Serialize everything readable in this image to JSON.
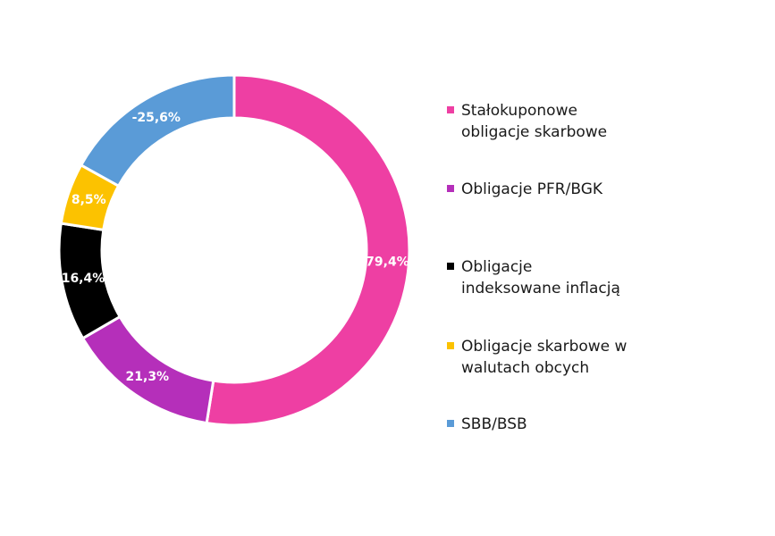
{
  "chart_data": {
    "type": "pie",
    "donut": true,
    "unit": "%",
    "slices": [
      {
        "label": "Stałokuponowe\nobligacje skarbowe",
        "value": 79.4,
        "value_text": "79,4%",
        "color": "#ee3fa3"
      },
      {
        "label": "Obligacje PFR/BGK",
        "value": 21.3,
        "value_text": "21,3%",
        "color": "#b52fba"
      },
      {
        "label": "Obligacje\nindeksowane inflacją",
        "value": 16.4,
        "value_text": "16,4%",
        "color": "#000000"
      },
      {
        "label": "Obligacje skarbowe w\nwalutach obcych",
        "value": 8.5,
        "value_text": "8,5%",
        "color": "#fcc200"
      },
      {
        "label": "SBB/BSB",
        "value": -25.6,
        "value_text": "-25,6%",
        "color": "#5a9bd7"
      }
    ],
    "legend_position": "right",
    "start_angle_deg": 0,
    "direction": "clockwise"
  }
}
